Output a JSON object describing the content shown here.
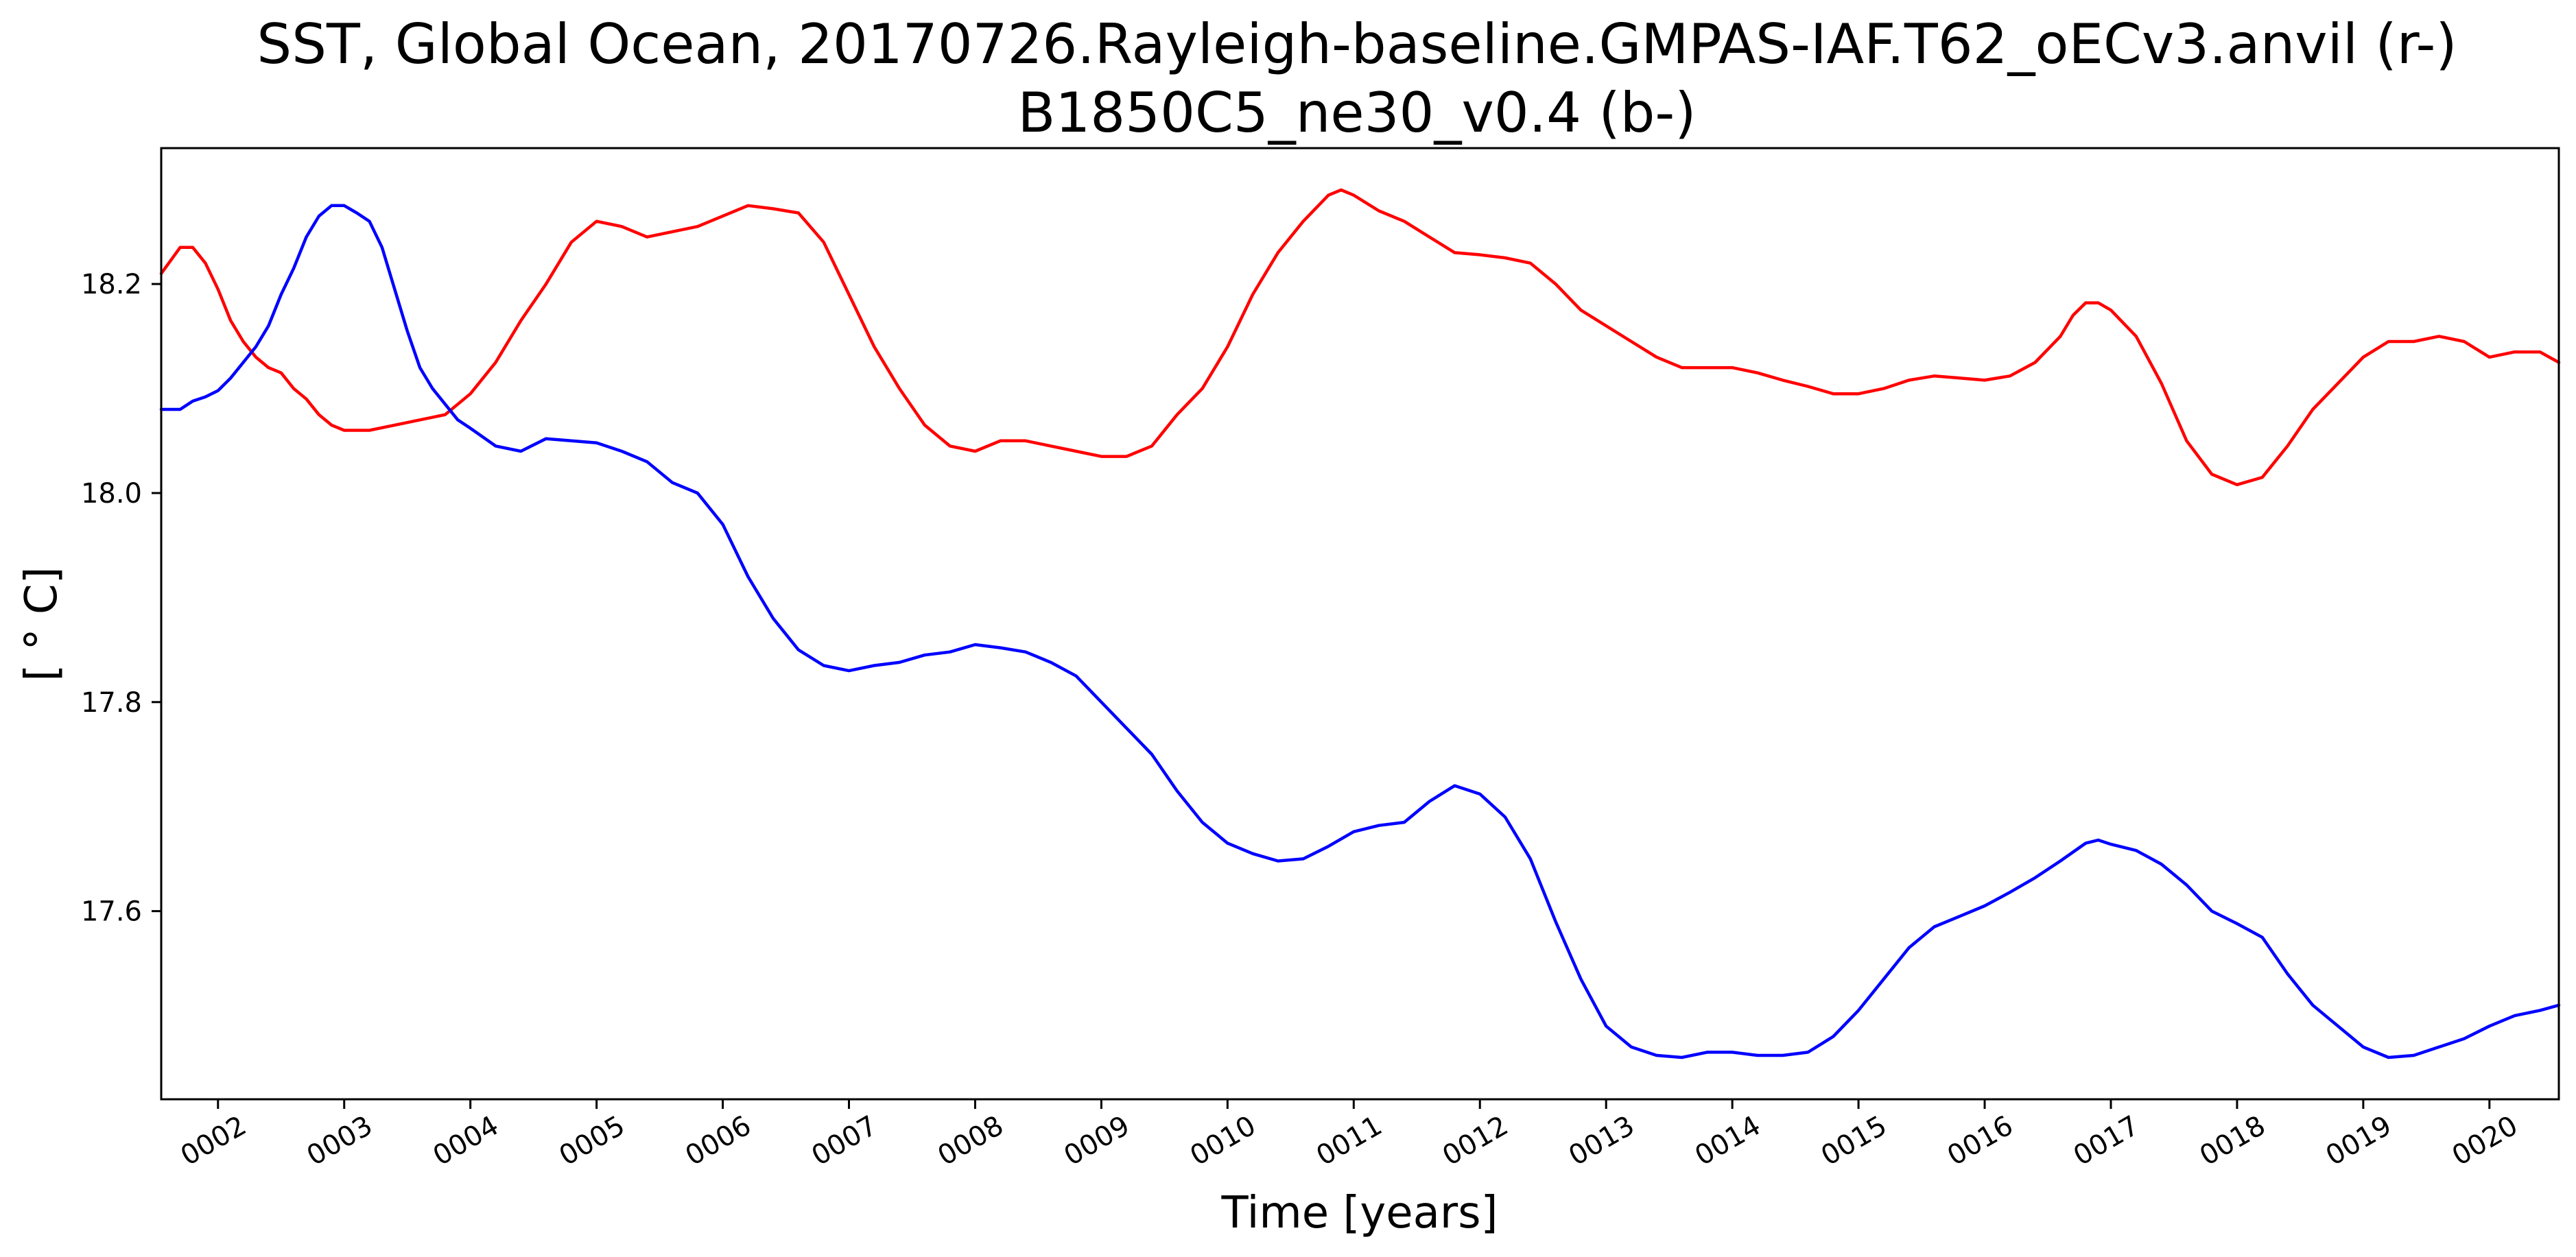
{
  "chart_data": {
    "type": "line",
    "title_line1": "SST, Global Ocean, 20170726.Rayleigh-baseline.GMPAS-IAF.T62_oECv3.anvil (r-)",
    "title_line2": "B1850C5_ne30_v0.4 (b-)",
    "xlabel": "Time [years]",
    "ylabel": "[ ° C]",
    "xlim": [
      1.55,
      20.55
    ],
    "ylim": [
      17.42,
      18.33
    ],
    "xticks": [
      2,
      3,
      4,
      5,
      6,
      7,
      8,
      9,
      10,
      11,
      12,
      13,
      14,
      15,
      16,
      17,
      18,
      19,
      20
    ],
    "xtick_labels": [
      "0002",
      "0003",
      "0004",
      "0005",
      "0006",
      "0007",
      "0008",
      "0009",
      "0010",
      "0011",
      "0012",
      "0013",
      "0014",
      "0015",
      "0016",
      "0017",
      "0018",
      "0019",
      "0020"
    ],
    "yticks": [
      17.6,
      17.8,
      18.0,
      18.2
    ],
    "ytick_labels": [
      "17.6",
      "17.8",
      "18.0",
      "18.2"
    ],
    "grid": false,
    "series": [
      {
        "color": "#ff0000",
        "x": [
          1.55,
          1.7,
          1.8,
          1.9,
          2.0,
          2.1,
          2.2,
          2.3,
          2.4,
          2.5,
          2.6,
          2.7,
          2.8,
          2.9,
          3.0,
          3.2,
          3.4,
          3.6,
          3.8,
          4.0,
          4.2,
          4.4,
          4.6,
          4.8,
          5.0,
          5.2,
          5.4,
          5.6,
          5.8,
          6.0,
          6.2,
          6.4,
          6.6,
          6.8,
          7.0,
          7.2,
          7.4,
          7.6,
          7.8,
          8.0,
          8.2,
          8.4,
          8.6,
          8.8,
          9.0,
          9.2,
          9.4,
          9.6,
          9.8,
          10.0,
          10.2,
          10.4,
          10.6,
          10.8,
          10.9,
          11.0,
          11.2,
          11.4,
          11.6,
          11.8,
          12.0,
          12.2,
          12.4,
          12.6,
          12.8,
          13.0,
          13.2,
          13.4,
          13.6,
          13.8,
          14.0,
          14.2,
          14.4,
          14.6,
          14.8,
          15.0,
          15.2,
          15.4,
          15.6,
          15.8,
          16.0,
          16.2,
          16.4,
          16.6,
          16.7,
          16.8,
          16.9,
          17.0,
          17.2,
          17.4,
          17.6,
          17.8,
          18.0,
          18.2,
          18.4,
          18.6,
          18.8,
          19.0,
          19.2,
          19.4,
          19.6,
          19.8,
          20.0,
          20.2,
          20.4,
          20.55
        ],
        "y": [
          18.21,
          18.235,
          18.235,
          18.22,
          18.195,
          18.165,
          18.145,
          18.13,
          18.12,
          18.115,
          18.1,
          18.09,
          18.075,
          18.065,
          18.06,
          18.06,
          18.065,
          18.07,
          18.075,
          18.095,
          18.125,
          18.165,
          18.2,
          18.24,
          18.26,
          18.255,
          18.245,
          18.25,
          18.255,
          18.265,
          18.275,
          18.272,
          18.268,
          18.24,
          18.19,
          18.14,
          18.1,
          18.065,
          18.045,
          18.04,
          18.05,
          18.05,
          18.045,
          18.04,
          18.035,
          18.035,
          18.045,
          18.075,
          18.1,
          18.14,
          18.19,
          18.23,
          18.26,
          18.285,
          18.29,
          18.285,
          18.27,
          18.26,
          18.245,
          18.23,
          18.228,
          18.225,
          18.22,
          18.2,
          18.175,
          18.16,
          18.145,
          18.13,
          18.12,
          18.12,
          18.12,
          18.115,
          18.108,
          18.102,
          18.095,
          18.095,
          18.1,
          18.108,
          18.112,
          18.11,
          18.108,
          18.112,
          18.125,
          18.15,
          18.17,
          18.182,
          18.182,
          18.175,
          18.15,
          18.105,
          18.05,
          18.018,
          18.008,
          18.015,
          18.045,
          18.08,
          18.105,
          18.13,
          18.145,
          18.145,
          18.15,
          18.145,
          18.13,
          18.135,
          18.135,
          18.125
        ]
      },
      {
        "color": "#0000ff",
        "x": [
          1.55,
          1.7,
          1.8,
          1.9,
          2.0,
          2.1,
          2.2,
          2.3,
          2.4,
          2.5,
          2.6,
          2.7,
          2.8,
          2.9,
          3.0,
          3.1,
          3.2,
          3.3,
          3.4,
          3.5,
          3.6,
          3.7,
          3.8,
          3.9,
          4.0,
          4.2,
          4.4,
          4.6,
          4.8,
          5.0,
          5.2,
          5.4,
          5.6,
          5.8,
          6.0,
          6.2,
          6.4,
          6.6,
          6.8,
          7.0,
          7.2,
          7.4,
          7.6,
          7.8,
          8.0,
          8.2,
          8.4,
          8.6,
          8.8,
          9.0,
          9.2,
          9.4,
          9.6,
          9.8,
          10.0,
          10.2,
          10.4,
          10.6,
          10.8,
          11.0,
          11.2,
          11.4,
          11.6,
          11.8,
          12.0,
          12.2,
          12.4,
          12.6,
          12.8,
          13.0,
          13.2,
          13.4,
          13.6,
          13.8,
          14.0,
          14.2,
          14.4,
          14.6,
          14.8,
          15.0,
          15.2,
          15.4,
          15.6,
          15.8,
          16.0,
          16.2,
          16.4,
          16.6,
          16.8,
          16.9,
          17.0,
          17.2,
          17.4,
          17.6,
          17.8,
          18.0,
          18.2,
          18.4,
          18.6,
          18.8,
          19.0,
          19.2,
          19.4,
          19.6,
          19.8,
          20.0,
          20.2,
          20.4,
          20.55
        ],
        "y": [
          18.08,
          18.08,
          18.088,
          18.092,
          18.098,
          18.11,
          18.125,
          18.14,
          18.16,
          18.19,
          18.215,
          18.245,
          18.265,
          18.275,
          18.275,
          18.268,
          18.26,
          18.235,
          18.195,
          18.155,
          18.12,
          18.1,
          18.085,
          18.07,
          18.062,
          18.045,
          18.04,
          18.052,
          18.05,
          18.048,
          18.04,
          18.03,
          18.01,
          18.0,
          17.97,
          17.92,
          17.88,
          17.85,
          17.835,
          17.83,
          17.835,
          17.838,
          17.845,
          17.848,
          17.855,
          17.852,
          17.848,
          17.838,
          17.825,
          17.8,
          17.775,
          17.75,
          17.715,
          17.685,
          17.665,
          17.655,
          17.648,
          17.65,
          17.662,
          17.676,
          17.682,
          17.685,
          17.705,
          17.72,
          17.712,
          17.69,
          17.65,
          17.59,
          17.535,
          17.49,
          17.47,
          17.462,
          17.46,
          17.465,
          17.465,
          17.462,
          17.462,
          17.465,
          17.48,
          17.505,
          17.535,
          17.565,
          17.585,
          17.595,
          17.605,
          17.618,
          17.632,
          17.648,
          17.665,
          17.668,
          17.664,
          17.658,
          17.645,
          17.625,
          17.6,
          17.588,
          17.575,
          17.54,
          17.51,
          17.49,
          17.47,
          17.46,
          17.462,
          17.47,
          17.478,
          17.49,
          17.5,
          17.505,
          17.51
        ]
      }
    ]
  }
}
